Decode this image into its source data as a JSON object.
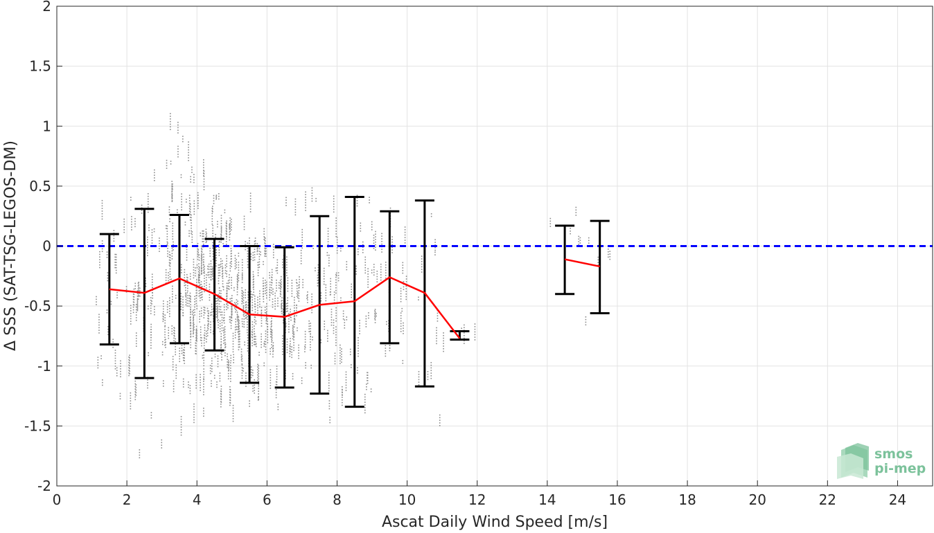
{
  "chart_data": {
    "type": "scatter",
    "xlabel": "Ascat Daily Wind Speed [m/s]",
    "ylabel": "Δ SSS (SAT-TSG-LEGOS-DM)",
    "xlim": [
      0,
      25
    ],
    "ylim": [
      -2,
      2
    ],
    "xticks": [
      0,
      2,
      4,
      6,
      8,
      10,
      12,
      14,
      16,
      18,
      20,
      22,
      24
    ],
    "yticks": [
      2,
      1.5,
      1,
      0.5,
      0,
      -0.5,
      -1,
      -1.5,
      -2
    ],
    "xtick_labels": [
      "0",
      "2",
      "4",
      "6",
      "8",
      "10",
      "12",
      "14",
      "16",
      "18",
      "20",
      "22",
      "24"
    ],
    "ytick_labels": [
      "2",
      "1.5",
      "1",
      "0.5",
      "0",
      "-0.5",
      "-1",
      "-1.5",
      "-2"
    ],
    "grid": true,
    "reference_line": {
      "y": 0,
      "style": "dashed",
      "color": "#0000ff"
    },
    "series": [
      {
        "color": "#ff0000",
        "segments": [
          {
            "x": [
              1.5,
              2.5,
              3.5,
              4.5,
              5.5,
              6.5,
              7.5,
              8.5,
              9.5,
              10.5,
              11.5
            ],
            "y": [
              -0.36,
              -0.39,
              -0.27,
              -0.4,
              -0.57,
              -0.59,
              -0.49,
              -0.46,
              -0.26,
              -0.39,
              -0.77
            ]
          },
          {
            "x": [
              14.5,
              15.5
            ],
            "y": [
              -0.11,
              -0.17
            ]
          }
        ]
      }
    ],
    "error_bars": {
      "color": "#000000",
      "x": [
        1.5,
        2.5,
        3.5,
        4.5,
        5.5,
        6.5,
        7.5,
        8.5,
        9.5,
        10.5,
        11.5,
        14.5,
        15.5
      ],
      "lower": [
        -0.82,
        -1.1,
        -0.81,
        -0.87,
        -1.14,
        -1.18,
        -1.23,
        -1.34,
        -0.81,
        -1.17,
        -0.78,
        -0.4,
        -0.56
      ],
      "upper": [
        0.1,
        0.31,
        0.26,
        0.06,
        0.0,
        -0.01,
        0.25,
        0.41,
        0.29,
        0.38,
        -0.71,
        0.17,
        0.21
      ]
    },
    "scatter_color": "#8a8a8a"
  },
  "logo": {
    "line1": "smos",
    "line2": "pi-mep",
    "color": "#7cc29b"
  }
}
